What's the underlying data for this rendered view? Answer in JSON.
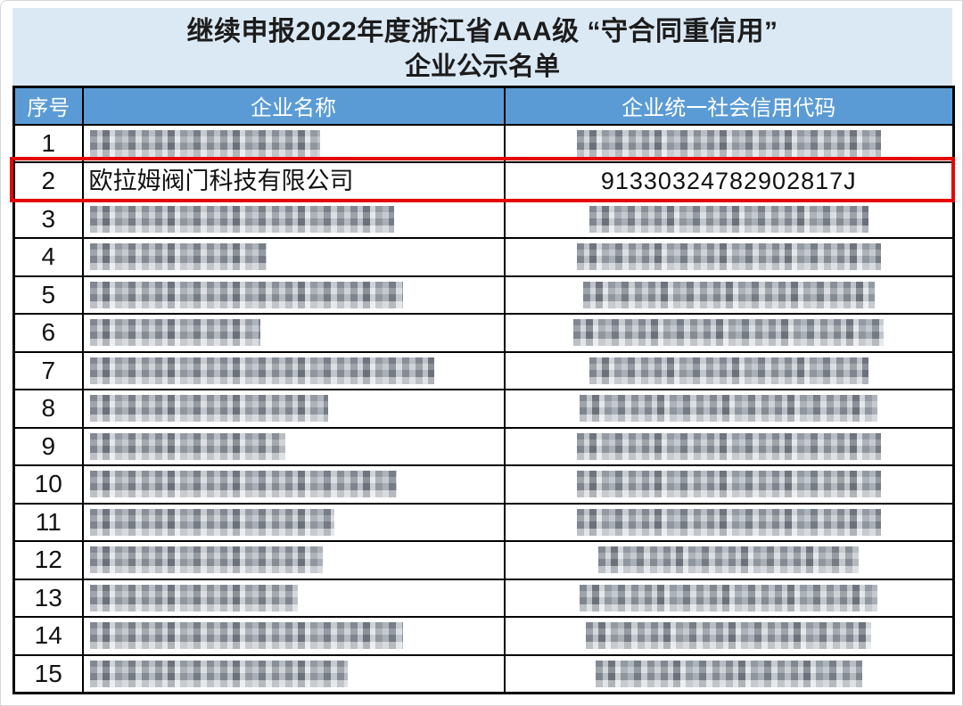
{
  "title": {
    "line1": "继续申报2022年度浙江省AAA级 “守合同重信用”",
    "line2": "企业公示名单"
  },
  "table": {
    "headers": [
      "序号",
      "企业名称",
      "企业统一社会信用代码"
    ]
  },
  "rows": [
    {
      "no": "1",
      "redacted": true,
      "name_w": 258,
      "code_w": 341
    },
    {
      "no": "2",
      "redacted": false,
      "highlighted": true,
      "name": "欧拉姆阀门科技有限公司",
      "code": "91330324782902817J"
    },
    {
      "no": "3",
      "redacted": true,
      "name_w": 341,
      "code_w": 313
    },
    {
      "no": "4",
      "redacted": true,
      "name_w": 198,
      "code_w": 341
    },
    {
      "no": "5",
      "redacted": true,
      "name_w": 351,
      "code_w": 327
    },
    {
      "no": "6",
      "redacted": true,
      "name_w": 191,
      "code_w": 348
    },
    {
      "no": "7",
      "redacted": true,
      "name_w": 386,
      "code_w": 313
    },
    {
      "no": "8",
      "redacted": true,
      "name_w": 267,
      "code_w": 334
    },
    {
      "no": "9",
      "redacted": true,
      "name_w": 219,
      "code_w": 341
    },
    {
      "no": "10",
      "redacted": true,
      "name_w": 344,
      "code_w": 341
    },
    {
      "no": "11",
      "redacted": true,
      "name_w": 274,
      "code_w": 341
    },
    {
      "no": "12",
      "redacted": true,
      "name_w": 261,
      "code_w": 292
    },
    {
      "no": "13",
      "redacted": true,
      "name_w": 233,
      "code_w": 334
    },
    {
      "no": "14",
      "redacted": true,
      "name_w": 351,
      "code_w": 320
    },
    {
      "no": "15",
      "redacted": true,
      "name_w": 289,
      "code_w": 299
    }
  ],
  "colors": {
    "title_band_bg": "#dbe9f5",
    "header_bg": "#5b9bd5",
    "header_text": "#ffffff",
    "grid_border": "#000000",
    "highlight_border": "#e60505"
  }
}
